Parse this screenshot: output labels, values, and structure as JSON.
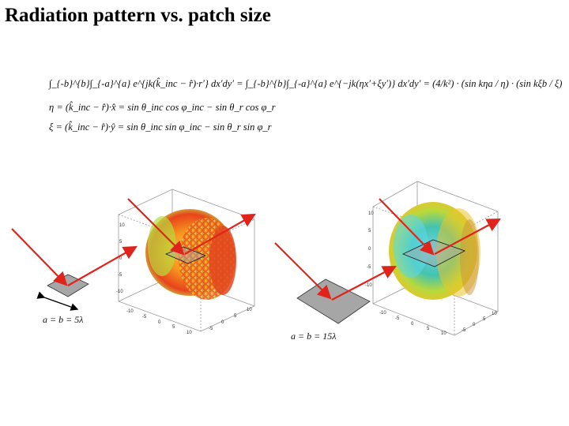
{
  "title": "Radiation pattern vs. patch size",
  "equations": {
    "eq1": "∫_{-b}^{b}∫_{-a}^{a} e^{jk(k̂_inc − r̂)·r′} dx′dy′ = ∫_{-b}^{b}∫_{-a}^{a} e^{−jk(ηx′+ξy′)} dx′dy′ = (4/k²) · (sin kηa / η) · (sin kξb / ξ)",
    "eq2": "η = (k̂_inc − r̂)·x̂ = sin θ_inc cos φ_inc − sin θ_r cos φ_r",
    "eq3": "ξ = (k̂_inc − r̂)·ŷ = sin θ_inc sin φ_inc − sin θ_r sin φ_r"
  },
  "left_case": {
    "label": "a = b = 5λ",
    "ticks_z": [
      "10",
      "5",
      "0",
      "-5",
      "-10"
    ],
    "ticks_x": [
      "-10",
      "-5",
      "0",
      "5",
      "10"
    ],
    "ticks_y": [
      "-5",
      "0",
      "5",
      "10"
    ]
  },
  "right_case": {
    "label": "a = b = 15λ",
    "ticks_z": [
      "10",
      "5",
      "0",
      "-5",
      "-10"
    ],
    "ticks_x": [
      "-10",
      "-5",
      "0",
      "5",
      "10"
    ],
    "ticks_y": [
      "-5",
      "0",
      "5",
      "10"
    ]
  },
  "colors": {
    "arrow": "#e0241b",
    "patch": "#a9a9a9",
    "pattern_small": "#f5a20c",
    "pattern_large": "#55c9c2"
  }
}
